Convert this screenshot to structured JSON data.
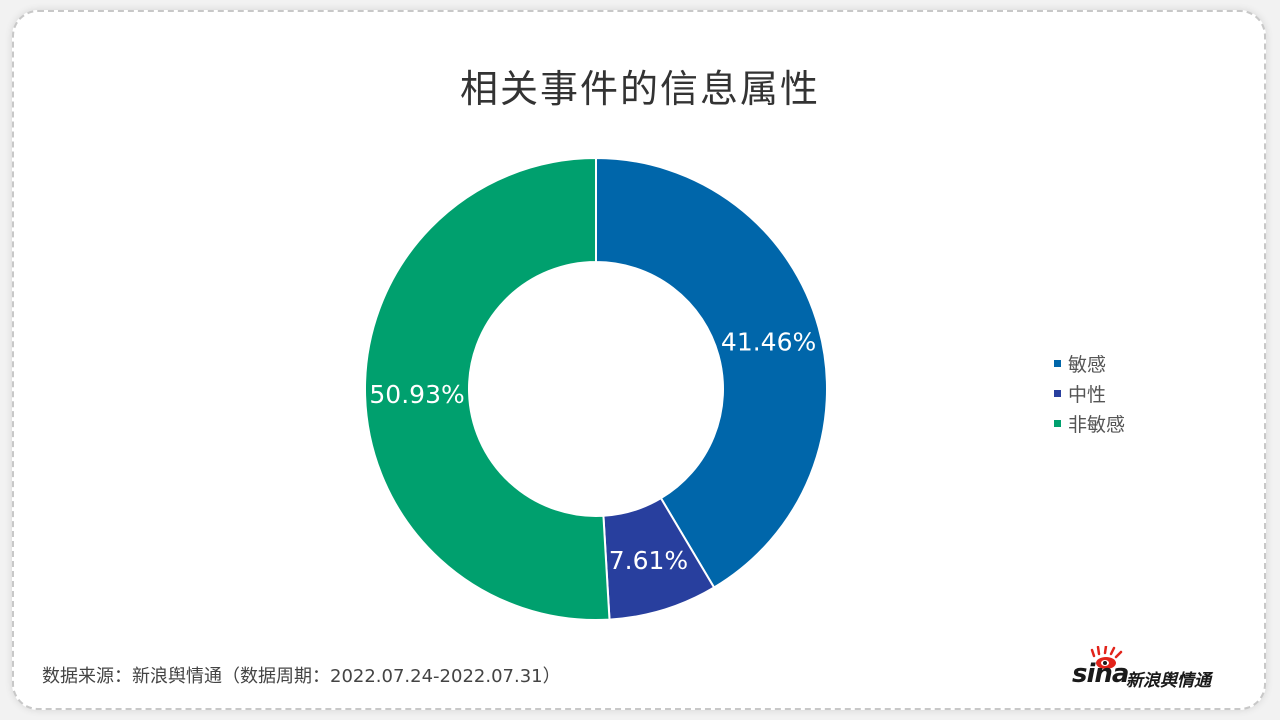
{
  "chart_data": {
    "type": "pie",
    "variant": "donut",
    "title": "相关事件的信息属性",
    "categories": [
      "敏感",
      "中性",
      "非敏感"
    ],
    "values": [
      41.46,
      7.61,
      50.93
    ],
    "labels": [
      "41.46%",
      "7.61%",
      "50.93%"
    ],
    "colors": [
      "#0066aa",
      "#283f9e",
      "#00a06e"
    ],
    "start_angle": "12 o'clock",
    "direction": "clockwise",
    "legend_position": "right"
  },
  "legend": [
    {
      "label": "敏感",
      "color": "#0066aa"
    },
    {
      "label": "中性",
      "color": "#283f9e"
    },
    {
      "label": "非敏感",
      "color": "#00a06e"
    }
  ],
  "footer": {
    "source": "数据来源：新浪舆情通（数据周期：2022.07.24-2022.07.31）"
  },
  "logo": {
    "brand": "sina",
    "text": "新浪舆情通"
  }
}
